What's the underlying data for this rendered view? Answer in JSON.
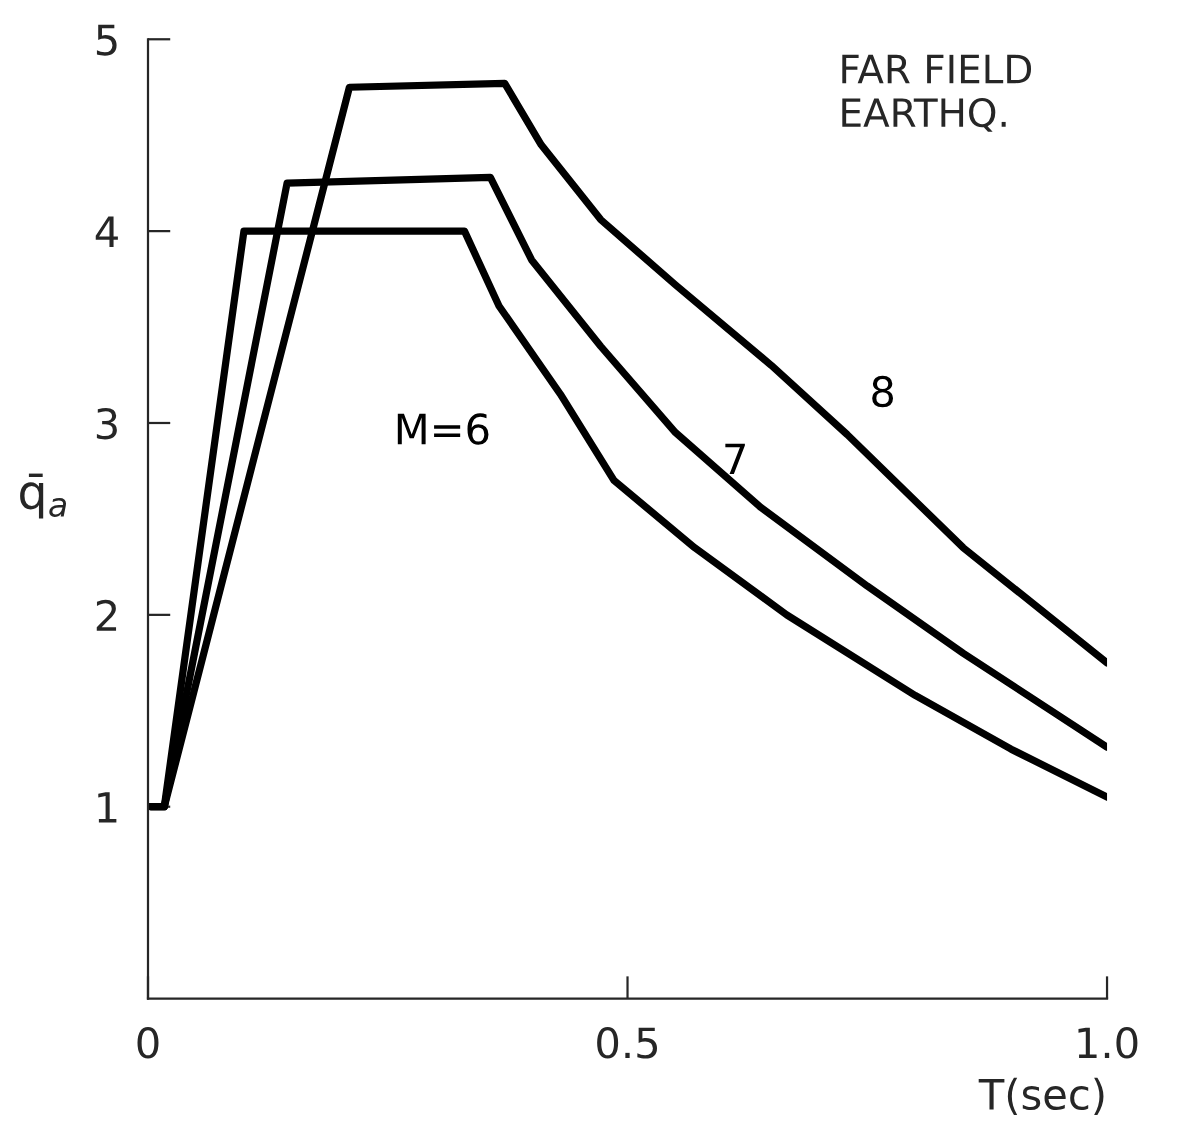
{
  "chart_data": {
    "type": "line",
    "xlabel": "T(sec)",
    "ylabel": "q̄$_{a}$",
    "annotations": [
      "FAR FIELD\nEARTHQ."
    ],
    "xlim": [
      0,
      1.0
    ],
    "ylim": [
      0,
      5
    ],
    "xticks": [
      0,
      0.5,
      {
        "value": 1.0,
        "label": "1.0"
      }
    ],
    "yticks": [
      1,
      2,
      3,
      4,
      5
    ],
    "grid": false,
    "legend": false,
    "marker": "none",
    "line_style": "solid",
    "series": [
      {
        "name": "M=6",
        "color": "#000000",
        "x": [
          0.003,
          0.017,
          0.1,
          0.33,
          0.366,
          0.43,
          0.486,
          0.57,
          0.666,
          0.8,
          0.9,
          1.0
        ],
        "values": [
          1,
          1,
          4.0,
          4.0,
          3.61,
          3.15,
          2.7,
          2.35,
          2.0,
          1.58,
          1.3,
          1.05
        ]
      },
      {
        "name": "7",
        "color": "#000000",
        "x": [
          0.003,
          0.017,
          0.145,
          0.357,
          0.4,
          0.472,
          0.55,
          0.639,
          0.75,
          0.85,
          1.0
        ],
        "values": [
          1,
          1,
          4.25,
          4.28,
          3.85,
          3.4,
          2.95,
          2.56,
          2.15,
          1.8,
          1.31
        ]
      },
      {
        "name": "8",
        "color": "#000000",
        "x": [
          0.003,
          0.017,
          0.21,
          0.372,
          0.41,
          0.472,
          0.55,
          0.65,
          0.729,
          0.85,
          1.0
        ],
        "values": [
          1,
          1,
          4.75,
          4.77,
          4.45,
          4.06,
          3.72,
          3.3,
          2.94,
          2.35,
          1.75
        ]
      }
    ]
  }
}
